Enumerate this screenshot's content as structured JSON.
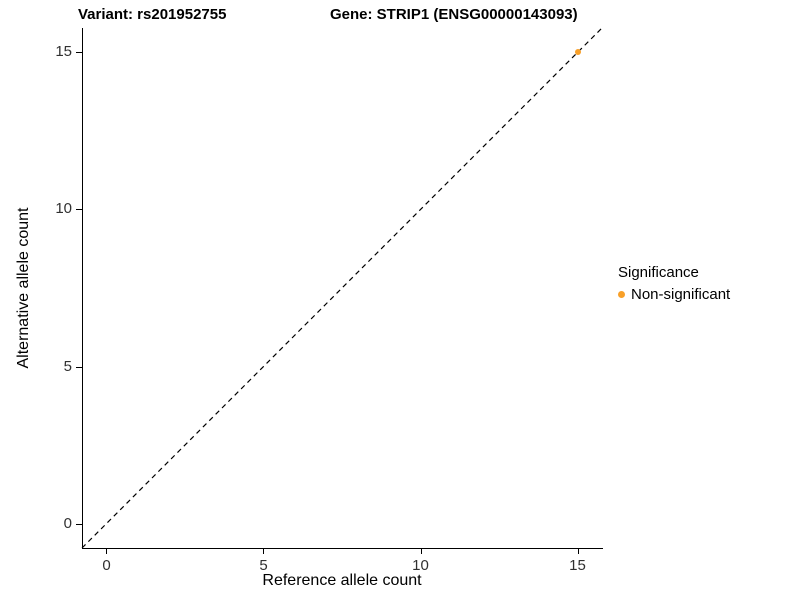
{
  "title": {
    "variant": "Variant: rs201952755",
    "gene": "Gene: STRIP1 (ENSG00000143093)"
  },
  "chart_data": {
    "type": "scatter",
    "title": "Variant: rs201952755   Gene: STRIP1 (ENSG00000143093)",
    "xlabel": "Reference allele count",
    "ylabel": "Alternative allele count",
    "xlim": [
      -0.78,
      15.78
    ],
    "ylim": [
      -0.78,
      15.78
    ],
    "xticks": [
      0,
      5,
      10,
      15
    ],
    "yticks": [
      0,
      5,
      10,
      15
    ],
    "grid": false,
    "identity_line": {
      "slope": 1,
      "intercept": 0,
      "style": "dashed",
      "color": "#000000"
    },
    "series": [
      {
        "name": "Non-significant",
        "color": "#F8A029",
        "points": [
          {
            "x": 15,
            "y": 15
          }
        ]
      }
    ]
  },
  "legend": {
    "title": "Significance",
    "position": "right",
    "items": [
      {
        "label": "Non-significant",
        "color": "#F8A029"
      }
    ]
  }
}
